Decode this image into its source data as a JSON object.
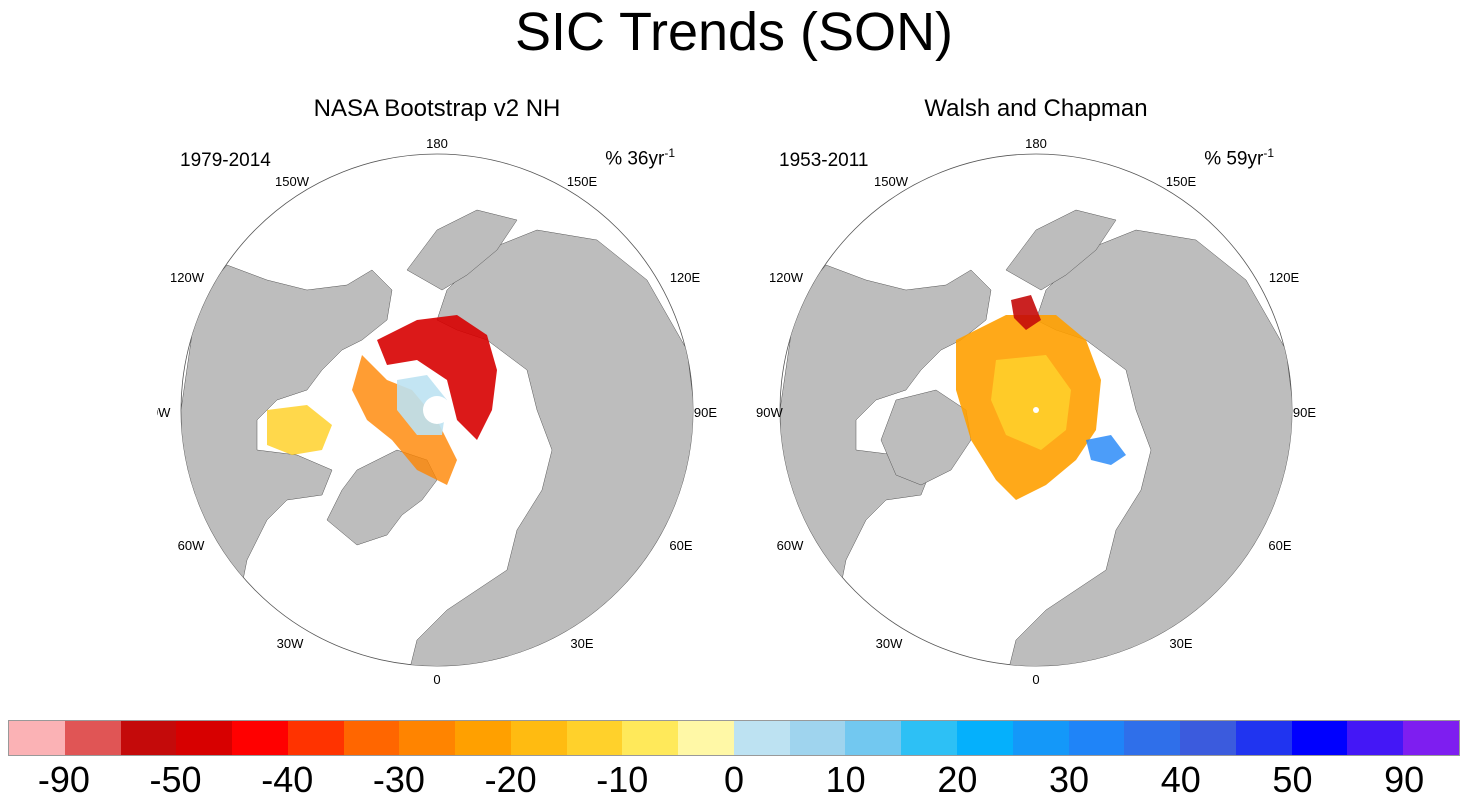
{
  "title": "SIC Trends (SON)",
  "panels": [
    {
      "title": "NASA Bootstrap v2 NH",
      "period": "1979-2014",
      "units_prefix": "% 36yr",
      "units_exp": "-1"
    },
    {
      "title": "Walsh and Chapman",
      "period": "1953-2011",
      "units_prefix": "% 59yr",
      "units_exp": "-1"
    }
  ],
  "longitude_labels": {
    "top": "180",
    "bottom": "0",
    "upper_left": "150W",
    "upper_right": "150E",
    "left_upper": "120W",
    "right_upper": "120E",
    "left": "90W",
    "right": "90E",
    "left_lower": "60W",
    "right_lower": "60E",
    "lower_left": "30W",
    "lower_right": "30E"
  },
  "colorbar": {
    "labels": [
      "-90",
      "-50",
      "-40",
      "-30",
      "-20",
      "-10",
      "0",
      "10",
      "20",
      "30",
      "40",
      "50",
      "90"
    ],
    "colors": [
      "#fbb2b5",
      "#e05555",
      "#c40a0a",
      "#d70000",
      "#ff0000",
      "#ff3300",
      "#ff6600",
      "#ff8400",
      "#ffa000",
      "#ffbb11",
      "#ffd12b",
      "#ffe95a",
      "#fff8a6",
      "#bde2f2",
      "#9fd4ee",
      "#72c8f0",
      "#2dc0f5",
      "#05b0fc",
      "#1498f9",
      "#1f84f8",
      "#2f6fea",
      "#3b5bdd",
      "#2034f0",
      "#0000ff",
      "#4417f6",
      "#7e1ef0"
    ]
  },
  "colors": {
    "land": "#bdbdbd",
    "ocean": "#ffffff"
  }
}
